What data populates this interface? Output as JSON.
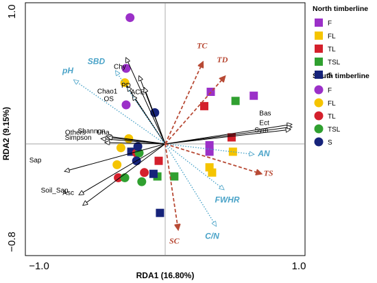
{
  "chart_data": {
    "type": "scatter",
    "xlabel": "RDA1 (16.80%)",
    "ylabel": "RDA2 (9.15%)",
    "xlim": [
      -1.0,
      1.0
    ],
    "ylim": [
      -0.8,
      1.0
    ],
    "x_ticks": [
      "−1.0",
      "1.0"
    ],
    "y_ticks": [
      "1.0",
      "−0.8"
    ],
    "legend": {
      "placement": "right",
      "groups": [
        {
          "title": "North timberline",
          "marker": "square",
          "entries": [
            {
              "label": "F",
              "color": "#9b30c8"
            },
            {
              "label": "FL",
              "color": "#f5c400"
            },
            {
              "label": "TL",
              "color": "#d4202c"
            },
            {
              "label": "TSL",
              "color": "#30a030"
            },
            {
              "label": "S",
              "color": "#16237a"
            }
          ]
        },
        {
          "title": "South timberline",
          "marker": "circle",
          "entries": [
            {
              "label": "F",
              "color": "#9b30c8"
            },
            {
              "label": "FL",
              "color": "#f5c400"
            },
            {
              "label": "TL",
              "color": "#d4202c"
            },
            {
              "label": "TSL",
              "color": "#30a030"
            },
            {
              "label": "S",
              "color": "#16237a"
            }
          ]
        }
      ]
    },
    "species_arrows": [
      {
        "label": "Chy",
        "x": -0.3,
        "y": 0.66
      },
      {
        "label": "PD",
        "x": -0.2,
        "y": 0.52
      },
      {
        "label": "Chao1",
        "x": -0.29,
        "y": 0.44
      },
      {
        "label": "ACE",
        "x": -0.16,
        "y": 0.43
      },
      {
        "label": "OS",
        "x": -0.25,
        "y": 0.37
      },
      {
        "label": "Shannon",
        "x": -0.45,
        "y": 0.06
      },
      {
        "label": "Una",
        "x": -0.44,
        "y": 0.05
      },
      {
        "label": "Others",
        "x": -0.49,
        "y": 0.04
      },
      {
        "label": "Simpson",
        "x": -0.46,
        "y": 0.01
      },
      {
        "label": "Sap",
        "x": -0.77,
        "y": -0.21
      },
      {
        "label": "Soil_Sap",
        "x": -0.66,
        "y": -0.39
      },
      {
        "label": "Asc",
        "x": -0.63,
        "y": -0.47
      },
      {
        "label": "Bas",
        "x": 0.97,
        "y": 0.15
      },
      {
        "label": "Ect",
        "x": 0.97,
        "y": 0.13
      },
      {
        "label": "Sym",
        "x": 0.96,
        "y": 0.11
      }
    ],
    "env_arrows_blue": [
      {
        "label": "pH",
        "x": -0.7,
        "y": 0.49
      },
      {
        "label": "SBD",
        "x": -0.38,
        "y": 0.56
      },
      {
        "label": "AN",
        "x": 0.68,
        "y": -0.08
      },
      {
        "label": "FWHR",
        "x": 0.45,
        "y": -0.35
      },
      {
        "label": "C/N",
        "x": 0.39,
        "y": -0.63
      }
    ],
    "env_arrows_red": [
      {
        "label": "TC",
        "x": 0.29,
        "y": 0.63
      },
      {
        "label": "TD",
        "x": 0.46,
        "y": 0.52
      },
      {
        "label": "TS",
        "x": 0.74,
        "y": -0.23
      },
      {
        "label": "SC",
        "x": 0.1,
        "y": -0.66
      }
    ],
    "points": [
      {
        "region": "North",
        "group": "F",
        "x": 0.35,
        "y": 0.4
      },
      {
        "region": "North",
        "group": "F",
        "x": 0.68,
        "y": 0.37
      },
      {
        "region": "North",
        "group": "F",
        "x": 0.34,
        "y": -0.01
      },
      {
        "region": "North",
        "group": "F",
        "x": 0.34,
        "y": -0.06
      },
      {
        "region": "North",
        "group": "FL",
        "x": 0.52,
        "y": -0.06
      },
      {
        "region": "North",
        "group": "FL",
        "x": 0.34,
        "y": -0.18
      },
      {
        "region": "North",
        "group": "FL",
        "x": 0.36,
        "y": -0.22
      },
      {
        "region": "North",
        "group": "TL",
        "x": 0.3,
        "y": 0.29
      },
      {
        "region": "North",
        "group": "TL",
        "x": 0.51,
        "y": 0.05
      },
      {
        "region": "North",
        "group": "TL",
        "x": -0.05,
        "y": -0.13
      },
      {
        "region": "North",
        "group": "TSL",
        "x": 0.54,
        "y": 0.33
      },
      {
        "region": "North",
        "group": "TSL",
        "x": 0.07,
        "y": -0.25
      },
      {
        "region": "North",
        "group": "TSL",
        "x": -0.06,
        "y": -0.25
      },
      {
        "region": "North",
        "group": "S",
        "x": -0.26,
        "y": -0.06
      },
      {
        "region": "North",
        "group": "S",
        "x": -0.09,
        "y": -0.23
      },
      {
        "region": "North",
        "group": "S",
        "x": -0.04,
        "y": -0.53
      },
      {
        "region": "South",
        "group": "F",
        "x": -0.27,
        "y": 0.97
      },
      {
        "region": "South",
        "group": "F",
        "x": -0.3,
        "y": 0.58
      },
      {
        "region": "South",
        "group": "F",
        "x": -0.3,
        "y": 0.3
      },
      {
        "region": "South",
        "group": "FL",
        "x": -0.31,
        "y": 0.47
      },
      {
        "region": "South",
        "group": "FL",
        "x": -0.28,
        "y": 0.04
      },
      {
        "region": "South",
        "group": "FL",
        "x": -0.37,
        "y": -0.16
      },
      {
        "region": "South",
        "group": "FL",
        "x": -0.34,
        "y": -0.03
      },
      {
        "region": "South",
        "group": "TL",
        "x": -0.22,
        "y": -0.07
      },
      {
        "region": "South",
        "group": "TL",
        "x": -0.36,
        "y": -0.26
      },
      {
        "region": "South",
        "group": "TL",
        "x": -0.16,
        "y": -0.22
      },
      {
        "region": "South",
        "group": "TSL",
        "x": -0.2,
        "y": -0.07
      },
      {
        "region": "South",
        "group": "TSL",
        "x": -0.31,
        "y": -0.26
      },
      {
        "region": "South",
        "group": "TSL",
        "x": -0.18,
        "y": -0.29
      },
      {
        "region": "South",
        "group": "S",
        "x": -0.08,
        "y": 0.24
      },
      {
        "region": "South",
        "group": "S",
        "x": -0.22,
        "y": -0.13
      },
      {
        "region": "South",
        "group": "S",
        "x": -0.21,
        "y": -0.02
      }
    ]
  }
}
